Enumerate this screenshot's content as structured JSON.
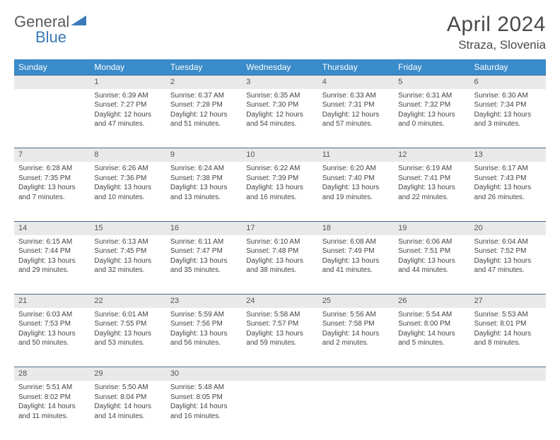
{
  "logo": {
    "general": "General",
    "blue": "Blue"
  },
  "title": "April 2024",
  "location": "Straza, Slovenia",
  "day_headers": [
    "Sunday",
    "Monday",
    "Tuesday",
    "Wednesday",
    "Thursday",
    "Friday",
    "Saturday"
  ],
  "colors": {
    "header_bg": "#3a8bc9",
    "daynum_bg": "#e9e9e9",
    "rule": "#4a6a8a"
  },
  "weeks": [
    {
      "nums": [
        "",
        "1",
        "2",
        "3",
        "4",
        "5",
        "6"
      ],
      "cells": [
        null,
        {
          "sunrise": "Sunrise: 6:39 AM",
          "sunset": "Sunset: 7:27 PM",
          "day1": "Daylight: 12 hours",
          "day2": "and 47 minutes."
        },
        {
          "sunrise": "Sunrise: 6:37 AM",
          "sunset": "Sunset: 7:28 PM",
          "day1": "Daylight: 12 hours",
          "day2": "and 51 minutes."
        },
        {
          "sunrise": "Sunrise: 6:35 AM",
          "sunset": "Sunset: 7:30 PM",
          "day1": "Daylight: 12 hours",
          "day2": "and 54 minutes."
        },
        {
          "sunrise": "Sunrise: 6:33 AM",
          "sunset": "Sunset: 7:31 PM",
          "day1": "Daylight: 12 hours",
          "day2": "and 57 minutes."
        },
        {
          "sunrise": "Sunrise: 6:31 AM",
          "sunset": "Sunset: 7:32 PM",
          "day1": "Daylight: 13 hours",
          "day2": "and 0 minutes."
        },
        {
          "sunrise": "Sunrise: 6:30 AM",
          "sunset": "Sunset: 7:34 PM",
          "day1": "Daylight: 13 hours",
          "day2": "and 3 minutes."
        }
      ]
    },
    {
      "nums": [
        "7",
        "8",
        "9",
        "10",
        "11",
        "12",
        "13"
      ],
      "cells": [
        {
          "sunrise": "Sunrise: 6:28 AM",
          "sunset": "Sunset: 7:35 PM",
          "day1": "Daylight: 13 hours",
          "day2": "and 7 minutes."
        },
        {
          "sunrise": "Sunrise: 6:26 AM",
          "sunset": "Sunset: 7:36 PM",
          "day1": "Daylight: 13 hours",
          "day2": "and 10 minutes."
        },
        {
          "sunrise": "Sunrise: 6:24 AM",
          "sunset": "Sunset: 7:38 PM",
          "day1": "Daylight: 13 hours",
          "day2": "and 13 minutes."
        },
        {
          "sunrise": "Sunrise: 6:22 AM",
          "sunset": "Sunset: 7:39 PM",
          "day1": "Daylight: 13 hours",
          "day2": "and 16 minutes."
        },
        {
          "sunrise": "Sunrise: 6:20 AM",
          "sunset": "Sunset: 7:40 PM",
          "day1": "Daylight: 13 hours",
          "day2": "and 19 minutes."
        },
        {
          "sunrise": "Sunrise: 6:19 AM",
          "sunset": "Sunset: 7:41 PM",
          "day1": "Daylight: 13 hours",
          "day2": "and 22 minutes."
        },
        {
          "sunrise": "Sunrise: 6:17 AM",
          "sunset": "Sunset: 7:43 PM",
          "day1": "Daylight: 13 hours",
          "day2": "and 26 minutes."
        }
      ]
    },
    {
      "nums": [
        "14",
        "15",
        "16",
        "17",
        "18",
        "19",
        "20"
      ],
      "cells": [
        {
          "sunrise": "Sunrise: 6:15 AM",
          "sunset": "Sunset: 7:44 PM",
          "day1": "Daylight: 13 hours",
          "day2": "and 29 minutes."
        },
        {
          "sunrise": "Sunrise: 6:13 AM",
          "sunset": "Sunset: 7:45 PM",
          "day1": "Daylight: 13 hours",
          "day2": "and 32 minutes."
        },
        {
          "sunrise": "Sunrise: 6:11 AM",
          "sunset": "Sunset: 7:47 PM",
          "day1": "Daylight: 13 hours",
          "day2": "and 35 minutes."
        },
        {
          "sunrise": "Sunrise: 6:10 AM",
          "sunset": "Sunset: 7:48 PM",
          "day1": "Daylight: 13 hours",
          "day2": "and 38 minutes."
        },
        {
          "sunrise": "Sunrise: 6:08 AM",
          "sunset": "Sunset: 7:49 PM",
          "day1": "Daylight: 13 hours",
          "day2": "and 41 minutes."
        },
        {
          "sunrise": "Sunrise: 6:06 AM",
          "sunset": "Sunset: 7:51 PM",
          "day1": "Daylight: 13 hours",
          "day2": "and 44 minutes."
        },
        {
          "sunrise": "Sunrise: 6:04 AM",
          "sunset": "Sunset: 7:52 PM",
          "day1": "Daylight: 13 hours",
          "day2": "and 47 minutes."
        }
      ]
    },
    {
      "nums": [
        "21",
        "22",
        "23",
        "24",
        "25",
        "26",
        "27"
      ],
      "cells": [
        {
          "sunrise": "Sunrise: 6:03 AM",
          "sunset": "Sunset: 7:53 PM",
          "day1": "Daylight: 13 hours",
          "day2": "and 50 minutes."
        },
        {
          "sunrise": "Sunrise: 6:01 AM",
          "sunset": "Sunset: 7:55 PM",
          "day1": "Daylight: 13 hours",
          "day2": "and 53 minutes."
        },
        {
          "sunrise": "Sunrise: 5:59 AM",
          "sunset": "Sunset: 7:56 PM",
          "day1": "Daylight: 13 hours",
          "day2": "and 56 minutes."
        },
        {
          "sunrise": "Sunrise: 5:58 AM",
          "sunset": "Sunset: 7:57 PM",
          "day1": "Daylight: 13 hours",
          "day2": "and 59 minutes."
        },
        {
          "sunrise": "Sunrise: 5:56 AM",
          "sunset": "Sunset: 7:58 PM",
          "day1": "Daylight: 14 hours",
          "day2": "and 2 minutes."
        },
        {
          "sunrise": "Sunrise: 5:54 AM",
          "sunset": "Sunset: 8:00 PM",
          "day1": "Daylight: 14 hours",
          "day2": "and 5 minutes."
        },
        {
          "sunrise": "Sunrise: 5:53 AM",
          "sunset": "Sunset: 8:01 PM",
          "day1": "Daylight: 14 hours",
          "day2": "and 8 minutes."
        }
      ]
    },
    {
      "nums": [
        "28",
        "29",
        "30",
        "",
        "",
        "",
        ""
      ],
      "cells": [
        {
          "sunrise": "Sunrise: 5:51 AM",
          "sunset": "Sunset: 8:02 PM",
          "day1": "Daylight: 14 hours",
          "day2": "and 11 minutes."
        },
        {
          "sunrise": "Sunrise: 5:50 AM",
          "sunset": "Sunset: 8:04 PM",
          "day1": "Daylight: 14 hours",
          "day2": "and 14 minutes."
        },
        {
          "sunrise": "Sunrise: 5:48 AM",
          "sunset": "Sunset: 8:05 PM",
          "day1": "Daylight: 14 hours",
          "day2": "and 16 minutes."
        },
        null,
        null,
        null,
        null
      ]
    }
  ]
}
